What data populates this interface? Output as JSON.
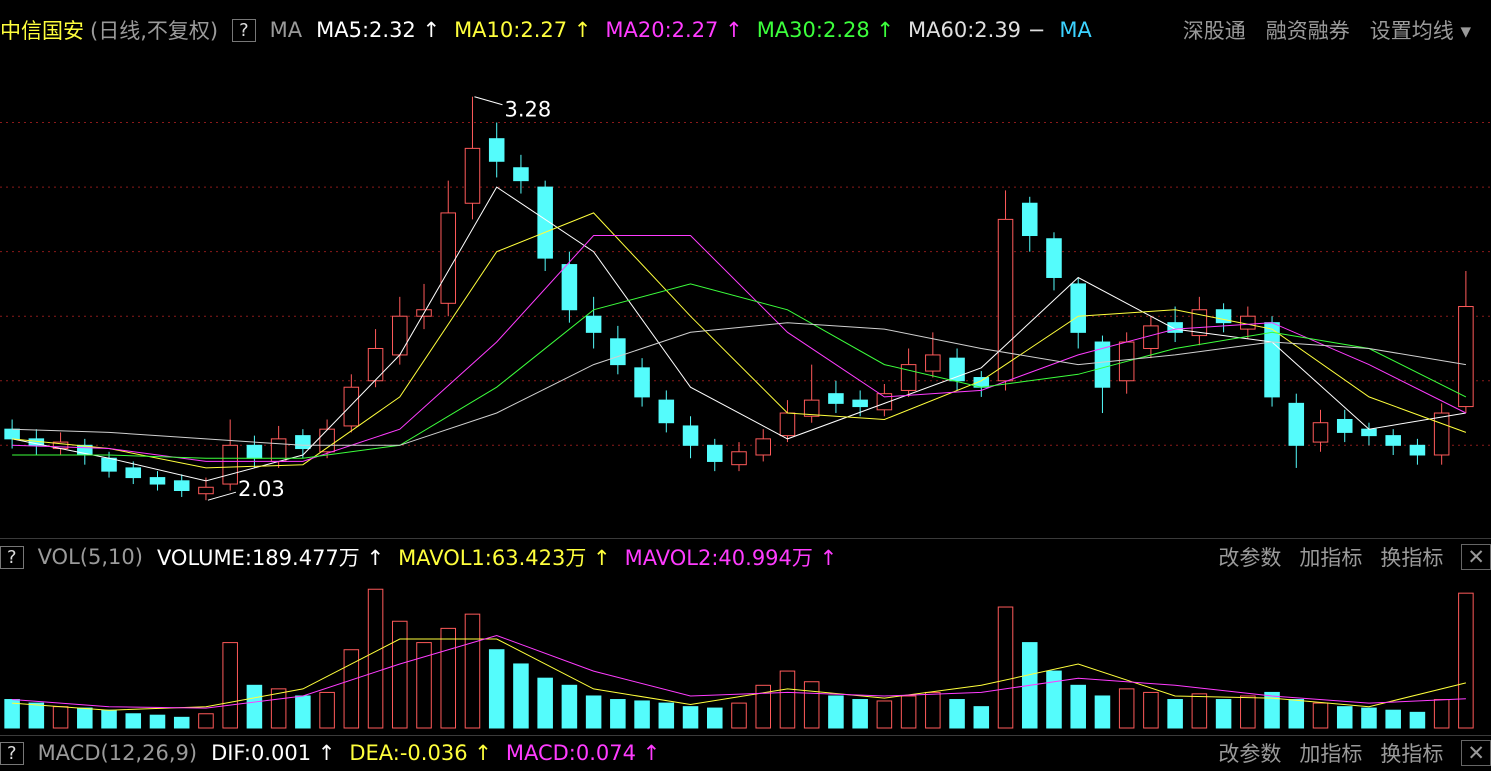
{
  "header": {
    "name": "中信国安",
    "mode": "(日线,不复权)",
    "help": "?",
    "ma": "MA",
    "indicators": [
      {
        "text": "MA5:2.32 ↑",
        "color": "#ffffff"
      },
      {
        "text": "MA10:2.27 ↑",
        "color": "#ffff3c"
      },
      {
        "text": "MA20:2.27 ↑",
        "color": "#ff3cff"
      },
      {
        "text": "MA30:2.28 ↑",
        "color": "#3cff3c"
      },
      {
        "text": "MA60:2.39 −",
        "color": "#e0e0e0"
      },
      {
        "text": "MA",
        "color": "#3cd2ff"
      }
    ],
    "buttons": [
      "深股通",
      "融资融券",
      "设置均线 ▾"
    ]
  },
  "chart_data": [
    {
      "type": "candlestick",
      "ylim": [
        1.95,
        3.4
      ],
      "yticks": [
        2.2,
        2.4,
        2.6,
        2.8,
        3.0,
        3.2
      ],
      "grid": true,
      "up_color": "#ff5a5a",
      "down_color": "#54fcfc",
      "open": [
        2.25,
        2.22,
        2.19,
        2.2,
        2.16,
        2.13,
        2.1,
        2.09,
        2.05,
        2.08,
        2.2,
        2.15,
        2.23,
        2.18,
        2.26,
        2.4,
        2.48,
        2.6,
        2.64,
        2.95,
        3.15,
        3.06,
        3.0,
        2.76,
        2.6,
        2.53,
        2.44,
        2.34,
        2.26,
        2.2,
        2.14,
        2.17,
        2.23,
        2.29,
        2.36,
        2.34,
        2.31,
        2.37,
        2.43,
        2.47,
        2.41,
        2.4,
        2.95,
        2.84,
        2.7,
        2.52,
        2.4,
        2.5,
        2.58,
        2.54,
        2.62,
        2.56,
        2.58,
        2.33,
        2.21,
        2.28,
        2.25,
        2.23,
        2.2,
        2.17,
        2.32
      ],
      "high": [
        2.28,
        2.25,
        2.24,
        2.22,
        2.18,
        2.15,
        2.12,
        2.11,
        2.1,
        2.28,
        2.23,
        2.26,
        2.25,
        2.28,
        2.42,
        2.56,
        2.66,
        2.7,
        3.02,
        3.28,
        3.2,
        3.1,
        3.02,
        2.8,
        2.66,
        2.57,
        2.47,
        2.37,
        2.29,
        2.22,
        2.21,
        2.25,
        2.34,
        2.45,
        2.4,
        2.37,
        2.39,
        2.5,
        2.55,
        2.5,
        2.43,
        2.99,
        2.97,
        2.86,
        2.72,
        2.54,
        2.55,
        2.6,
        2.63,
        2.66,
        2.64,
        2.63,
        2.6,
        2.36,
        2.31,
        2.31,
        2.27,
        2.25,
        2.22,
        2.33,
        2.74
      ],
      "low": [
        2.19,
        2.17,
        2.17,
        2.14,
        2.1,
        2.08,
        2.06,
        2.04,
        2.03,
        2.06,
        2.13,
        2.13,
        2.16,
        2.16,
        2.24,
        2.38,
        2.45,
        2.56,
        2.6,
        2.9,
        3.03,
        2.98,
        2.74,
        2.58,
        2.5,
        2.42,
        2.32,
        2.24,
        2.16,
        2.12,
        2.12,
        2.15,
        2.21,
        2.27,
        2.3,
        2.29,
        2.29,
        2.35,
        2.41,
        2.37,
        2.35,
        2.37,
        2.8,
        2.68,
        2.5,
        2.3,
        2.36,
        2.47,
        2.52,
        2.51,
        2.55,
        2.53,
        2.32,
        2.13,
        2.18,
        2.21,
        2.2,
        2.17,
        2.14,
        2.14,
        2.3
      ],
      "close": [
        2.22,
        2.2,
        2.21,
        2.17,
        2.12,
        2.1,
        2.08,
        2.06,
        2.07,
        2.2,
        2.16,
        2.22,
        2.19,
        2.25,
        2.38,
        2.5,
        2.6,
        2.62,
        2.92,
        3.12,
        3.08,
        3.02,
        2.78,
        2.62,
        2.55,
        2.45,
        2.35,
        2.27,
        2.2,
        2.15,
        2.18,
        2.22,
        2.3,
        2.34,
        2.33,
        2.32,
        2.36,
        2.45,
        2.48,
        2.4,
        2.38,
        2.9,
        2.85,
        2.72,
        2.55,
        2.38,
        2.52,
        2.57,
        2.55,
        2.62,
        2.58,
        2.6,
        2.35,
        2.2,
        2.27,
        2.24,
        2.23,
        2.2,
        2.17,
        2.3,
        2.63
      ],
      "ma_lines": [
        {
          "color": "#ffffff",
          "x": [
            0,
            4,
            8,
            12,
            16,
            20,
            24,
            28,
            32,
            36,
            40,
            44,
            48,
            52,
            56,
            60
          ],
          "values": [
            2.22,
            2.16,
            2.09,
            2.17,
            2.48,
            3.0,
            2.8,
            2.38,
            2.22,
            2.33,
            2.44,
            2.72,
            2.56,
            2.52,
            2.25,
            2.3
          ]
        },
        {
          "color": "#ffff3c",
          "x": [
            0,
            4,
            8,
            12,
            16,
            20,
            24,
            28,
            32,
            36,
            40,
            44,
            48,
            52,
            56,
            60
          ],
          "values": [
            2.22,
            2.19,
            2.13,
            2.14,
            2.35,
            2.8,
            2.92,
            2.6,
            2.3,
            2.28,
            2.4,
            2.6,
            2.62,
            2.56,
            2.35,
            2.24
          ]
        },
        {
          "color": "#ff3cff",
          "x": [
            0,
            4,
            8,
            12,
            16,
            20,
            24,
            28,
            32,
            36,
            40,
            44,
            48,
            52,
            56,
            60
          ],
          "values": [
            2.2,
            2.19,
            2.15,
            2.15,
            2.25,
            2.52,
            2.85,
            2.85,
            2.55,
            2.35,
            2.37,
            2.48,
            2.56,
            2.58,
            2.45,
            2.3
          ]
        },
        {
          "color": "#3cff3c",
          "x": [
            0,
            4,
            8,
            12,
            16,
            20,
            24,
            28,
            32,
            36,
            40,
            44,
            48,
            52,
            56,
            60
          ],
          "values": [
            2.17,
            2.17,
            2.16,
            2.16,
            2.2,
            2.38,
            2.62,
            2.7,
            2.62,
            2.45,
            2.38,
            2.42,
            2.5,
            2.55,
            2.5,
            2.35
          ]
        },
        {
          "color": "#d0d0d0",
          "x": [
            0,
            4,
            8,
            12,
            16,
            20,
            24,
            28,
            32,
            36,
            40,
            44,
            48,
            52,
            56,
            60
          ],
          "values": [
            2.25,
            2.24,
            2.22,
            2.2,
            2.2,
            2.3,
            2.45,
            2.55,
            2.58,
            2.56,
            2.5,
            2.45,
            2.48,
            2.52,
            2.5,
            2.45
          ]
        }
      ]
    },
    {
      "type": "bar",
      "ylim": [
        0,
        215
      ],
      "values": [
        40,
        35,
        30,
        28,
        25,
        20,
        18,
        15,
        20,
        120,
        60,
        55,
        45,
        50,
        110,
        195,
        150,
        120,
        140,
        160,
        110,
        90,
        70,
        60,
        45,
        40,
        38,
        35,
        30,
        28,
        35,
        60,
        80,
        65,
        45,
        40,
        38,
        45,
        50,
        40,
        30,
        170,
        120,
        80,
        60,
        45,
        55,
        50,
        40,
        48,
        40,
        45,
        50,
        40,
        35,
        30,
        28,
        25,
        22,
        40,
        189.477
      ],
      "ma_lines": [
        {
          "color": "#ffff3c",
          "x": [
            0,
            4,
            8,
            12,
            16,
            20,
            24,
            28,
            32,
            36,
            40,
            44,
            48,
            52,
            56,
            60
          ],
          "values": [
            35,
            25,
            30,
            55,
            125,
            125,
            55,
            33,
            55,
            42,
            60,
            90,
            45,
            42,
            30,
            63.423
          ]
        },
        {
          "color": "#ff3cff",
          "x": [
            0,
            4,
            8,
            12,
            16,
            20,
            24,
            28,
            32,
            36,
            40,
            44,
            48,
            52,
            56,
            60
          ],
          "values": [
            40,
            30,
            28,
            45,
            90,
            130,
            80,
            45,
            50,
            45,
            50,
            70,
            60,
            45,
            35,
            40.994
          ]
        }
      ]
    }
  ],
  "volume_panel": {
    "help": "?",
    "title": "VOL(5,10)",
    "readouts": [
      {
        "text": "VOLUME:189.477万 ↑",
        "color": "#ffffff"
      },
      {
        "text": "MAVOL1:63.423万 ↑",
        "color": "#ffff3c"
      },
      {
        "text": "MAVOL2:40.994万 ↑",
        "color": "#ff3cff"
      }
    ],
    "buttons": [
      "改参数",
      "加指标",
      "换指标"
    ],
    "close": "✕"
  },
  "macd_panel": {
    "help": "?",
    "title": "MACD(12,26,9)",
    "readouts": [
      {
        "text": "DIF:0.001 ↑",
        "color": "#ffffff"
      },
      {
        "text": "DEA:-0.036 ↑",
        "color": "#ffff3c"
      },
      {
        "text": "MACD:0.074 ↑",
        "color": "#ff3cff"
      }
    ],
    "buttons": [
      "改参数",
      "加指标",
      "换指标"
    ],
    "close": "✕"
  }
}
